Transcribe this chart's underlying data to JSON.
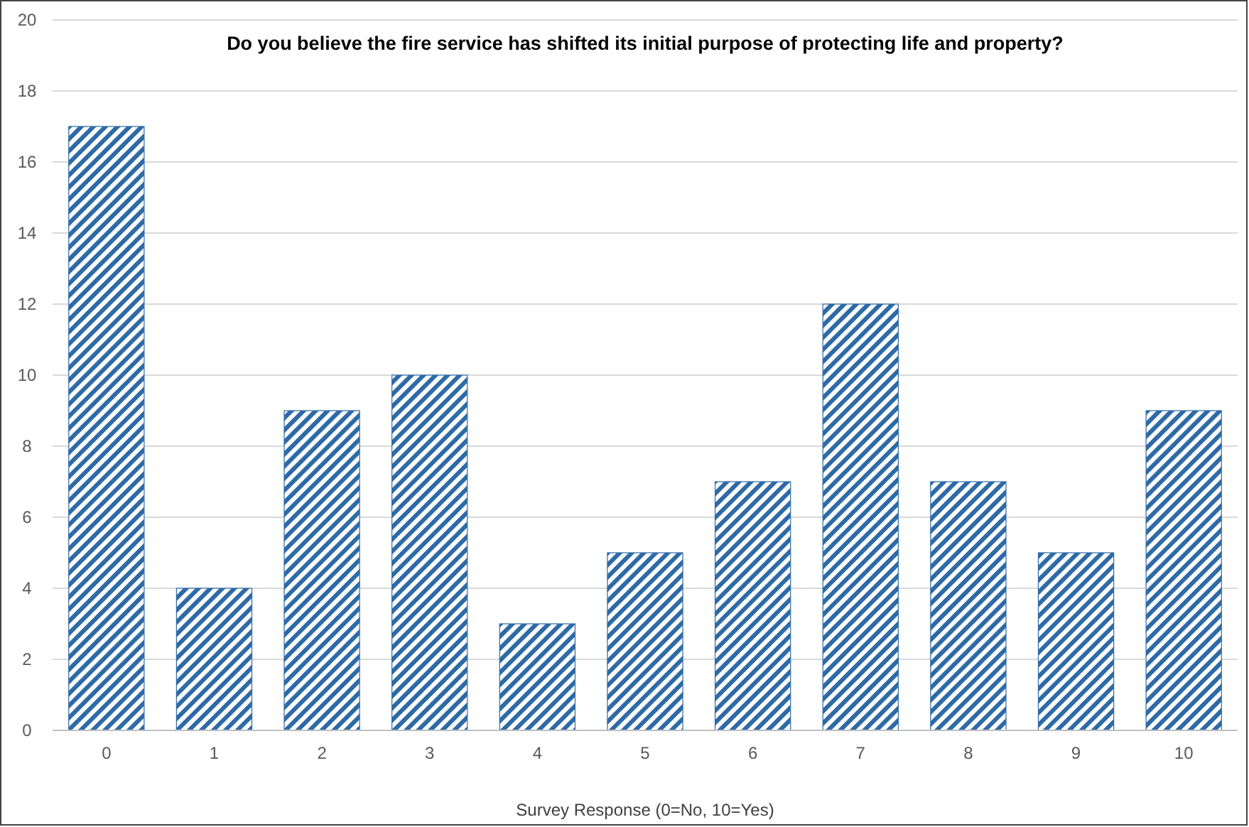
{
  "chart_data": {
    "type": "bar",
    "title": "Do you believe the fire service has shifted its initial purpose of protecting life and property?",
    "xlabel": "Survey Response (0=No, 10=Yes)",
    "categories": [
      "0",
      "1",
      "2",
      "3",
      "4",
      "5",
      "6",
      "7",
      "8",
      "9",
      "10"
    ],
    "values": [
      17,
      4,
      9,
      10,
      3,
      5,
      7,
      12,
      7,
      5,
      9
    ],
    "color": "#2e6aa6",
    "ylim": [
      0,
      20
    ],
    "yticks": [
      0,
      2,
      4,
      6,
      8,
      10,
      12,
      14,
      16,
      18,
      20
    ],
    "grid": "y"
  }
}
